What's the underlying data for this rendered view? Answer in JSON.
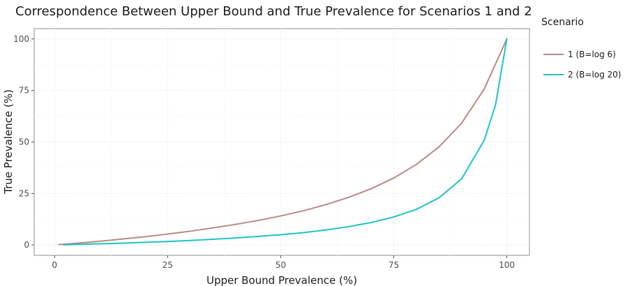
{
  "chart_data": {
    "type": "line",
    "title": "Correspondence Between Upper Bound and True Prevalence for Scenarios 1 and 2",
    "xlabel": "Upper Bound Prevalence (%)",
    "ylabel": "True Prevalence (%)",
    "xlim": [
      -4.5,
      105
    ],
    "ylim": [
      -5,
      105
    ],
    "x_ticks": [
      0,
      25,
      50,
      75,
      100
    ],
    "y_ticks": [
      0,
      25,
      50,
      75,
      100
    ],
    "grid": true,
    "legend": {
      "title": "Scenario",
      "position": "right"
    },
    "series": [
      {
        "name": "1 (B=log 6)",
        "color": "#b88a86",
        "x": [
          1,
          5,
          10,
          15,
          20,
          25,
          30,
          35,
          40,
          45,
          50,
          55,
          60,
          65,
          70,
          75,
          80,
          85,
          90,
          95,
          100
        ],
        "y": [
          0.2,
          0.9,
          1.8,
          2.9,
          4.0,
          5.3,
          6.7,
          8.3,
          10.0,
          11.9,
          14.1,
          16.6,
          19.6,
          23.1,
          27.3,
          32.5,
          39.1,
          47.6,
          59.1,
          75.7,
          100
        ]
      },
      {
        "name": "2 (B=log 20)",
        "color": "#1fc3c6",
        "x": [
          2,
          5,
          10,
          15,
          20,
          25,
          30,
          35,
          40,
          45,
          50,
          55,
          60,
          65,
          70,
          75,
          80,
          85,
          90,
          95,
          97.5,
          100
        ],
        "y": [
          0.1,
          0.3,
          0.6,
          0.9,
          1.3,
          1.7,
          2.2,
          2.8,
          3.4,
          4.2,
          5.0,
          6.0,
          7.3,
          8.9,
          10.9,
          13.6,
          17.3,
          22.9,
          32.1,
          50.8,
          68.0,
          100
        ]
      }
    ]
  }
}
